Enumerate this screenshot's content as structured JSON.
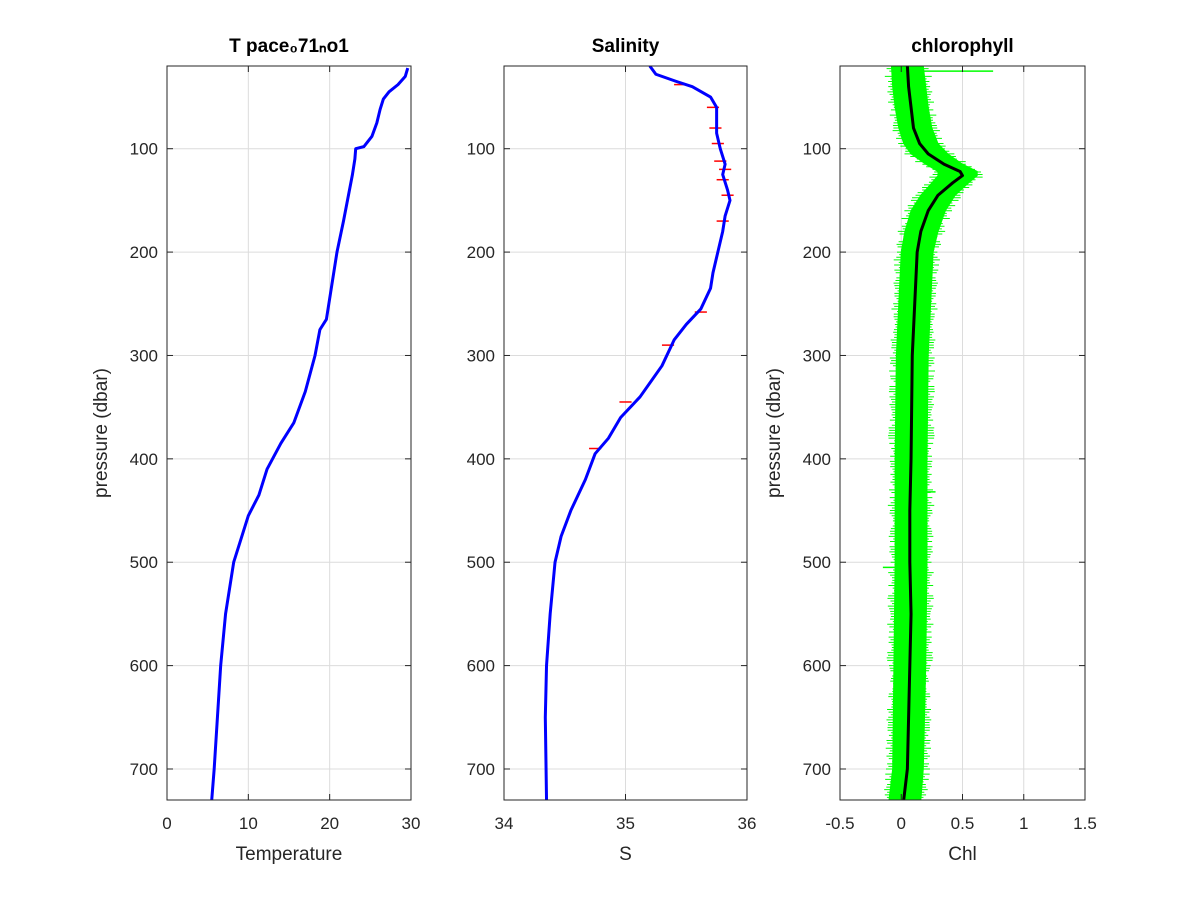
{
  "figure": {
    "background": "#ffffff"
  },
  "chart_data": [
    {
      "type": "line",
      "title": "T pace₀71ₙo1",
      "xlabel": "Temperature",
      "ylabel": "pressure (dbar)",
      "xlim": [
        0,
        30
      ],
      "ylim": [
        20,
        730
      ],
      "y_reversed": true,
      "grid": true,
      "xticks": [
        "0",
        "10",
        "20",
        "30"
      ],
      "yticks": [
        "100",
        "200",
        "300",
        "400",
        "500",
        "600",
        "700"
      ],
      "series": [
        {
          "color": "#0000ff",
          "points": [
            [
              29.6,
              22
            ],
            [
              29.3,
              30
            ],
            [
              28.4,
              38
            ],
            [
              27.3,
              45
            ],
            [
              26.6,
              52
            ],
            [
              26.2,
              62
            ],
            [
              25.8,
              75
            ],
            [
              25.2,
              88
            ],
            [
              24.2,
              98
            ],
            [
              23.2,
              100
            ],
            [
              23.1,
              110
            ],
            [
              22.8,
              125
            ],
            [
              21.7,
              170
            ],
            [
              20.9,
              200
            ],
            [
              20.1,
              240
            ],
            [
              19.6,
              265
            ],
            [
              18.8,
              275
            ],
            [
              18.2,
              300
            ],
            [
              17.0,
              335
            ],
            [
              15.6,
              365
            ],
            [
              14.0,
              385
            ],
            [
              12.3,
              410
            ],
            [
              11.3,
              435
            ],
            [
              10.0,
              455
            ],
            [
              9.0,
              480
            ],
            [
              8.2,
              500
            ],
            [
              7.2,
              550
            ],
            [
              6.6,
              600
            ],
            [
              6.2,
              650
            ],
            [
              5.8,
              700
            ],
            [
              5.5,
              730
            ]
          ]
        }
      ]
    },
    {
      "type": "line",
      "title": "Salinity",
      "xlabel": "S",
      "ylabel": "",
      "xlim": [
        34,
        36
      ],
      "ylim": [
        20,
        730
      ],
      "y_reversed": true,
      "grid": true,
      "xticks": [
        "34",
        "35",
        "36"
      ],
      "yticks": [
        "100",
        "200",
        "300",
        "400",
        "500",
        "600",
        "700"
      ],
      "series": [
        {
          "color": "#0000ff",
          "points": [
            [
              35.2,
              20
            ],
            [
              35.25,
              28
            ],
            [
              35.42,
              35
            ],
            [
              35.55,
              40
            ],
            [
              35.7,
              50
            ],
            [
              35.75,
              60
            ],
            [
              35.75,
              85
            ],
            [
              35.78,
              100
            ],
            [
              35.82,
              115
            ],
            [
              35.8,
              125
            ],
            [
              35.84,
              140
            ],
            [
              35.86,
              150
            ],
            [
              35.82,
              165
            ],
            [
              35.8,
              180
            ],
            [
              35.76,
              200
            ],
            [
              35.72,
              220
            ],
            [
              35.7,
              235
            ],
            [
              35.62,
              255
            ],
            [
              35.5,
              270
            ],
            [
              35.4,
              285
            ],
            [
              35.3,
              310
            ],
            [
              35.12,
              340
            ],
            [
              34.96,
              360
            ],
            [
              34.86,
              380
            ],
            [
              34.75,
              395
            ],
            [
              34.67,
              420
            ],
            [
              34.55,
              450
            ],
            [
              34.47,
              475
            ],
            [
              34.42,
              500
            ],
            [
              34.38,
              550
            ],
            [
              34.35,
              600
            ],
            [
              34.34,
              650
            ],
            [
              34.35,
              730
            ]
          ]
        }
      ],
      "error_ticks_color": "#ff0000",
      "error_ticks": [
        [
          35.45,
          38
        ],
        [
          35.72,
          60
        ],
        [
          35.74,
          80
        ],
        [
          35.76,
          95
        ],
        [
          35.78,
          112
        ],
        [
          35.82,
          120
        ],
        [
          35.8,
          130
        ],
        [
          35.84,
          145
        ],
        [
          35.8,
          170
        ],
        [
          35.62,
          258
        ],
        [
          35.35,
          290
        ],
        [
          35.0,
          345
        ],
        [
          34.75,
          390
        ]
      ]
    },
    {
      "type": "line",
      "title": "chlorophyll",
      "xlabel": "Chl",
      "ylabel": "pressure (dbar)",
      "xlim": [
        -0.5,
        1.5
      ],
      "ylim": [
        20,
        730
      ],
      "y_reversed": true,
      "grid": true,
      "xticks": [
        "-0.5",
        "0",
        "0.5",
        "1",
        "1.5"
      ],
      "yticks": [
        "100",
        "200",
        "300",
        "400",
        "500",
        "600",
        "700"
      ],
      "series": [
        {
          "name": "",
          "color": "#000000",
          "points": [
            [
              0.05,
              20
            ],
            [
              0.06,
              40
            ],
            [
              0.08,
              60
            ],
            [
              0.1,
              80
            ],
            [
              0.15,
              95
            ],
            [
              0.22,
              105
            ],
            [
              0.35,
              115
            ],
            [
              0.48,
              122
            ],
            [
              0.5,
              126
            ],
            [
              0.42,
              133
            ],
            [
              0.3,
              145
            ],
            [
              0.22,
              160
            ],
            [
              0.16,
              180
            ],
            [
              0.13,
              200
            ],
            [
              0.11,
              250
            ],
            [
              0.09,
              300
            ],
            [
              0.08,
              400
            ],
            [
              0.07,
              450
            ],
            [
              0.07,
              500
            ],
            [
              0.08,
              550
            ],
            [
              0.07,
              600
            ],
            [
              0.06,
              650
            ],
            [
              0.05,
              700
            ],
            [
              0.02,
              730
            ]
          ]
        }
      ],
      "band_color": "#00ff00",
      "band": [
        [
          20,
          -0.08,
          0.18
        ],
        [
          40,
          -0.07,
          0.2
        ],
        [
          60,
          -0.05,
          0.22
        ],
        [
          80,
          -0.02,
          0.25
        ],
        [
          95,
          0.02,
          0.3
        ],
        [
          105,
          0.08,
          0.38
        ],
        [
          115,
          0.2,
          0.5
        ],
        [
          122,
          0.3,
          0.62
        ],
        [
          126,
          0.3,
          0.62
        ],
        [
          133,
          0.25,
          0.55
        ],
        [
          145,
          0.16,
          0.44
        ],
        [
          160,
          0.08,
          0.36
        ],
        [
          180,
          0.03,
          0.3
        ],
        [
          200,
          0.0,
          0.26
        ],
        [
          250,
          -0.02,
          0.24
        ],
        [
          300,
          -0.04,
          0.22
        ],
        [
          400,
          -0.05,
          0.21
        ],
        [
          500,
          -0.05,
          0.21
        ],
        [
          600,
          -0.06,
          0.2
        ],
        [
          700,
          -0.07,
          0.18
        ],
        [
          730,
          -0.1,
          0.16
        ]
      ],
      "spikes": [
        [
          25,
          0.75
        ],
        [
          432,
          0.28
        ],
        [
          505,
          -0.15
        ]
      ]
    }
  ]
}
